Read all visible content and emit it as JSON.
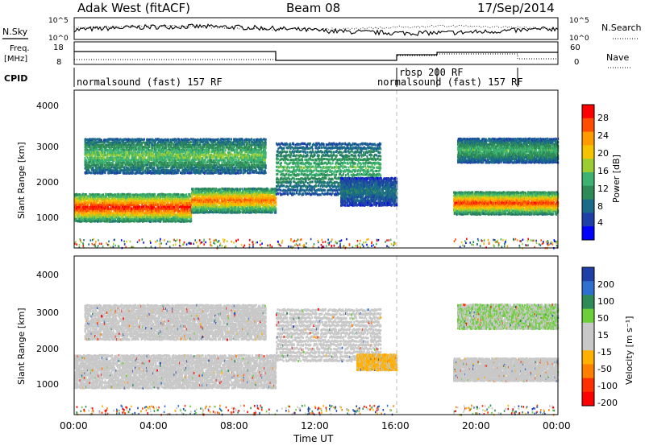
{
  "header": {
    "station": "Adak West (fitACF)",
    "beam": "Beam 08",
    "date": "17/Sep/2014"
  },
  "summary_panels": {
    "nsky_label": "N.Sky",
    "nsearch_label": "N.Search",
    "noise_ticks_left": [
      "10^5",
      "10^0"
    ],
    "noise_ticks_right": [
      "10^5",
      "10^0"
    ],
    "freq_label": "Freq.",
    "freq_unit": "[MHz]",
    "freq_ticks": [
      "18",
      "8"
    ],
    "nave_label": "Nave",
    "nave_ticks": [
      "60",
      "0"
    ],
    "cpid_label": "CPID",
    "cpid_segments": [
      {
        "label": "normalsound (fast) 157 RF",
        "start": 0.0
      },
      {
        "label": "rbsp 200 RF",
        "start": 18.0
      },
      {
        "label": "normalsound (fast) 157 RF",
        "start": 20.3
      }
    ]
  },
  "power_colorbar": {
    "title": "Power [dB]",
    "ticks": [
      "28",
      "24",
      "20",
      "16",
      "12",
      "8",
      "4"
    ],
    "colors": [
      "#ff0000",
      "#ff4d00",
      "#ff9a00",
      "#f5c400",
      "#9acd32",
      "#3cb371",
      "#2e8b57",
      "#1a6a8a",
      "#1f3fa8",
      "#0000ff"
    ]
  },
  "velocity_colorbar": {
    "title": "Velocity [m s⁻¹]",
    "ticks": [
      "200",
      "100",
      "50",
      "15",
      "-15",
      "-50",
      "-100",
      "-200"
    ],
    "colors": [
      "#1f3fa8",
      "#2e6fcf",
      "#2e8b57",
      "#6ccf3a",
      "#c8c8c8",
      "#c8c8c8",
      "#ffb000",
      "#ff8000",
      "#ff3000",
      "#ff0000"
    ]
  },
  "axes": {
    "ylabel": "Slant Range [km]",
    "yticks": [
      "4000",
      "3000",
      "2000",
      "1000"
    ],
    "xticks": [
      "00:00",
      "04:00",
      "08:00",
      "12:00",
      "16:00",
      "20:00",
      "00:00"
    ],
    "xlabel": "Time UT"
  },
  "chart_data": [
    {
      "type": "heatmap",
      "title": "",
      "quantity": "Power",
      "unit": "dB",
      "xlabel": "Time UT",
      "ylabel": "Slant Range [km]",
      "xlim": [
        0,
        24
      ],
      "ylim": [
        180,
        4600
      ],
      "clim": [
        0,
        30
      ],
      "bands": [
        {
          "t0": 0.0,
          "t1": 5.8,
          "r_lo": 950,
          "r_hi": 1750,
          "peak_db": 30
        },
        {
          "t0": 5.8,
          "t1": 10.0,
          "r_lo": 1200,
          "r_hi": 1900,
          "peak_db": 26
        },
        {
          "t0": 0.5,
          "t1": 9.5,
          "r_lo": 2300,
          "r_hi": 3300,
          "peak_db": 16
        },
        {
          "t0": 10.0,
          "t1": 15.2,
          "r_lo": 1700,
          "r_hi": 3200,
          "peak_db": 14
        },
        {
          "t0": 13.2,
          "t1": 16.0,
          "r_lo": 1400,
          "r_hi": 2200,
          "peak_db": 8
        },
        {
          "t0": 18.8,
          "t1": 24.0,
          "r_lo": 1150,
          "r_hi": 1800,
          "peak_db": 28
        },
        {
          "t0": 19.0,
          "t1": 24.0,
          "r_lo": 2600,
          "r_hi": 3300,
          "peak_db": 14
        }
      ]
    },
    {
      "type": "heatmap",
      "title": "",
      "quantity": "Velocity",
      "unit": "m s-1",
      "xlabel": "Time UT",
      "ylabel": "Slant Range [km]",
      "xlim": [
        0,
        24
      ],
      "ylim": [
        180,
        4600
      ],
      "clim": [
        -200,
        200
      ],
      "bands": [
        {
          "t0": 0.0,
          "t1": 10.0,
          "r_lo": 950,
          "r_hi": 1900,
          "velocity": 0
        },
        {
          "t0": 0.5,
          "t1": 9.5,
          "r_lo": 2300,
          "r_hi": 3300,
          "velocity": 0
        },
        {
          "t0": 10.0,
          "t1": 15.2,
          "r_lo": 1700,
          "r_hi": 3200,
          "velocity": 0
        },
        {
          "t0": 14.0,
          "t1": 16.0,
          "r_lo": 1450,
          "r_hi": 1900,
          "velocity": -60
        },
        {
          "t0": 18.8,
          "t1": 24.0,
          "r_lo": 1150,
          "r_hi": 1800,
          "velocity": 0
        },
        {
          "t0": 19.0,
          "t1": 24.0,
          "r_lo": 2600,
          "r_hi": 3300,
          "velocity": 40
        }
      ]
    }
  ]
}
